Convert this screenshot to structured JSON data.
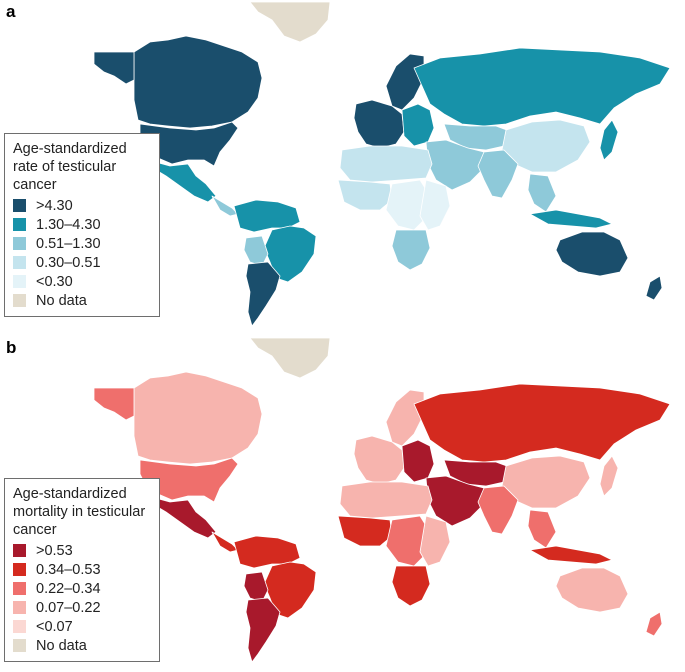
{
  "panels": [
    {
      "letter": "a",
      "legend_title": "Age-standardized rate of testicular cancer",
      "classes": [
        {
          "label": ">4.30",
          "color": "#1a4e6c"
        },
        {
          "label": "1.30–4.30",
          "color": "#1792a9"
        },
        {
          "label": "0.51–1.30",
          "color": "#8ec9d9"
        },
        {
          "label": "0.30–0.51",
          "color": "#c4e4ee"
        },
        {
          "label": "<0.30",
          "color": "#e4f3f8"
        },
        {
          "label": "No data",
          "color": "#e3dccd"
        }
      ],
      "regions": [
        {
          "name": "greenland",
          "class": 5
        },
        {
          "name": "canada",
          "class": 0
        },
        {
          "name": "alaska",
          "class": 0
        },
        {
          "name": "united-states",
          "class": 0
        },
        {
          "name": "mexico",
          "class": 1
        },
        {
          "name": "central-america",
          "class": 2
        },
        {
          "name": "northern-south-america",
          "class": 1
        },
        {
          "name": "brazil",
          "class": 1
        },
        {
          "name": "bolivia",
          "class": 2
        },
        {
          "name": "southern-cone",
          "class": 0
        },
        {
          "name": "scandinavia",
          "class": 0
        },
        {
          "name": "western-europe",
          "class": 0
        },
        {
          "name": "eastern-europe",
          "class": 1
        },
        {
          "name": "russia",
          "class": 1
        },
        {
          "name": "central-asia",
          "class": 2
        },
        {
          "name": "china",
          "class": 3
        },
        {
          "name": "middle-east",
          "class": 2
        },
        {
          "name": "india",
          "class": 2
        },
        {
          "name": "north-africa",
          "class": 3
        },
        {
          "name": "west-africa",
          "class": 3
        },
        {
          "name": "central-africa",
          "class": 4
        },
        {
          "name": "east-africa",
          "class": 4
        },
        {
          "name": "southern-africa",
          "class": 2
        },
        {
          "name": "southeast-asia",
          "class": 2
        },
        {
          "name": "indonesia",
          "class": 1
        },
        {
          "name": "japan",
          "class": 1
        },
        {
          "name": "australia",
          "class": 0
        },
        {
          "name": "new-zealand",
          "class": 0
        }
      ]
    },
    {
      "letter": "b",
      "legend_title": "Age-standardized mortality in testicular cancer",
      "classes": [
        {
          "label": ">0.53",
          "color": "#a8192c"
        },
        {
          "label": "0.34–0.53",
          "color": "#d42a1f"
        },
        {
          "label": "0.22–0.34",
          "color": "#ef6f6c"
        },
        {
          "label": "0.07–0.22",
          "color": "#f7b4ae"
        },
        {
          "label": "<0.07",
          "color": "#fbd8d3"
        },
        {
          "label": "No data",
          "color": "#e3dccd"
        }
      ],
      "regions": [
        {
          "name": "greenland",
          "class": 5
        },
        {
          "name": "canada",
          "class": 3
        },
        {
          "name": "alaska",
          "class": 2
        },
        {
          "name": "united-states",
          "class": 2
        },
        {
          "name": "mexico",
          "class": 0
        },
        {
          "name": "central-america",
          "class": 1
        },
        {
          "name": "northern-south-america",
          "class": 1
        },
        {
          "name": "brazil",
          "class": 1
        },
        {
          "name": "bolivia",
          "class": 0
        },
        {
          "name": "southern-cone",
          "class": 0
        },
        {
          "name": "scandinavia",
          "class": 3
        },
        {
          "name": "western-europe",
          "class": 3
        },
        {
          "name": "eastern-europe",
          "class": 0
        },
        {
          "name": "russia",
          "class": 1
        },
        {
          "name": "central-asia",
          "class": 0
        },
        {
          "name": "china",
          "class": 3
        },
        {
          "name": "middle-east",
          "class": 0
        },
        {
          "name": "india",
          "class": 2
        },
        {
          "name": "north-africa",
          "class": 3
        },
        {
          "name": "west-africa",
          "class": 1
        },
        {
          "name": "central-africa",
          "class": 2
        },
        {
          "name": "east-africa",
          "class": 3
        },
        {
          "name": "southern-africa",
          "class": 1
        },
        {
          "name": "southeast-asia",
          "class": 2
        },
        {
          "name": "indonesia",
          "class": 1
        },
        {
          "name": "japan",
          "class": 3
        },
        {
          "name": "australia",
          "class": 3
        },
        {
          "name": "new-zealand",
          "class": 2
        }
      ]
    }
  ]
}
